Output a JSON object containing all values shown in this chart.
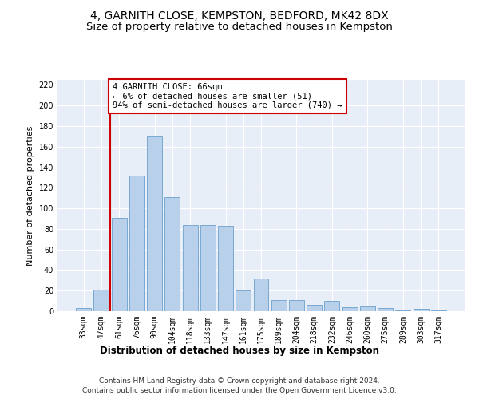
{
  "title": "4, GARNITH CLOSE, KEMPSTON, BEDFORD, MK42 8DX",
  "subtitle": "Size of property relative to detached houses in Kempston",
  "xlabel": "Distribution of detached houses by size in Kempston",
  "ylabel": "Number of detached properties",
  "categories": [
    "33sqm",
    "47sqm",
    "61sqm",
    "76sqm",
    "90sqm",
    "104sqm",
    "118sqm",
    "133sqm",
    "147sqm",
    "161sqm",
    "175sqm",
    "189sqm",
    "204sqm",
    "218sqm",
    "232sqm",
    "246sqm",
    "260sqm",
    "275sqm",
    "289sqm",
    "303sqm",
    "317sqm"
  ],
  "values": [
    3,
    21,
    91,
    132,
    170,
    111,
    84,
    84,
    83,
    20,
    32,
    11,
    11,
    6,
    10,
    4,
    5,
    3,
    1,
    2,
    1
  ],
  "bar_color": "#b8d0ea",
  "bar_edge_color": "#6aa0cc",
  "vline_color": "#cc0000",
  "vline_pos": 1.5,
  "annotation_text": "4 GARNITH CLOSE: 66sqm\n← 6% of detached houses are smaller (51)\n94% of semi-detached houses are larger (740) →",
  "annotation_box_color": "#ffffff",
  "annotation_box_edge_color": "#cc0000",
  "ylim": [
    0,
    225
  ],
  "yticks": [
    0,
    20,
    40,
    60,
    80,
    100,
    120,
    140,
    160,
    180,
    200,
    220
  ],
  "bg_color": "#e8eef8",
  "footer_line1": "Contains HM Land Registry data © Crown copyright and database right 2024.",
  "footer_line2": "Contains public sector information licensed under the Open Government Licence v3.0.",
  "title_fontsize": 10,
  "subtitle_fontsize": 9.5,
  "xlabel_fontsize": 8.5,
  "ylabel_fontsize": 8,
  "tick_fontsize": 7,
  "annotation_fontsize": 7.5,
  "footer_fontsize": 6.5
}
